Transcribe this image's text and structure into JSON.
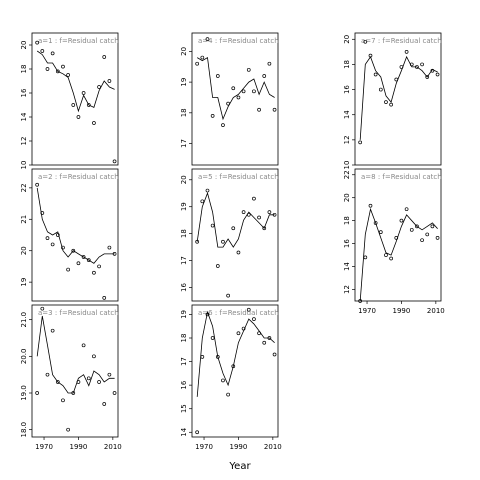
{
  "xlabel": "Year",
  "chart_data": [
    {
      "type": "scatter",
      "title": "a=1 : f=Residual catch",
      "x": [
        1966,
        1969,
        1972,
        1975,
        1978,
        1981,
        1984,
        1987,
        1990,
        1993,
        1996,
        1999,
        2002,
        2005,
        2008,
        2011
      ],
      "values": [
        20.2,
        19.5,
        18,
        19.3,
        17.8,
        18.2,
        17.5,
        15,
        14,
        16,
        15,
        13.5,
        16.5,
        19,
        17,
        10.3
      ],
      "fit": [
        19.5,
        19.2,
        18.5,
        18.5,
        17.8,
        17.6,
        17.3,
        16,
        14.5,
        15.8,
        15,
        14.8,
        16.2,
        17,
        16.5,
        16.3
      ],
      "xlim": [
        1963,
        2013
      ],
      "xticks": [
        1970,
        1990,
        2010
      ],
      "show_xticks": false,
      "ylim": [
        10,
        21
      ],
      "yticks": [
        10,
        12,
        14,
        16,
        18,
        20
      ]
    },
    {
      "type": "scatter",
      "title": "a=2 : f=Residual catch",
      "x": [
        1966,
        1969,
        1972,
        1975,
        1978,
        1981,
        1984,
        1987,
        1990,
        1993,
        1996,
        1999,
        2002,
        2005,
        2008,
        2011
      ],
      "values": [
        22.1,
        21.2,
        20.4,
        20.2,
        20.5,
        20.1,
        19.4,
        20,
        19.6,
        19.8,
        19.7,
        19.3,
        19.5,
        18.5,
        20.1,
        19.9
      ],
      "fit": [
        22,
        21,
        20.6,
        20.5,
        20.6,
        20,
        19.8,
        20,
        19.9,
        19.8,
        19.7,
        19.6,
        19.8,
        19.9,
        19.9,
        19.9
      ],
      "xlim": [
        1963,
        2013
      ],
      "xticks": [
        1970,
        1990,
        2010
      ],
      "show_xticks": false,
      "ylim": [
        18.4,
        22.6
      ],
      "yticks": [
        19,
        20,
        21,
        22
      ]
    },
    {
      "type": "scatter",
      "title": "a=3 : f=Residual catch",
      "x": [
        1966,
        1969,
        1972,
        1975,
        1978,
        1981,
        1984,
        1987,
        1990,
        1993,
        1996,
        1999,
        2002,
        2005,
        2008,
        2011
      ],
      "values": [
        19,
        21.3,
        19.5,
        20.7,
        19.3,
        18.8,
        18,
        19,
        19.3,
        20.3,
        19.4,
        20,
        19.3,
        18.7,
        19.5,
        19
      ],
      "fit": [
        20,
        21.1,
        20.3,
        19.5,
        19.3,
        19.2,
        19,
        19,
        19.4,
        19.5,
        19.2,
        19.6,
        19.5,
        19.3,
        19.4,
        19.4
      ],
      "xlim": [
        1963,
        2013
      ],
      "xticks": [
        1970,
        1990,
        2010
      ],
      "show_xticks": true,
      "ylim": [
        17.8,
        21.4
      ],
      "yticks": [
        {
          "value": 18,
          "label": "18.0"
        },
        {
          "value": 19,
          "label": "19.0"
        },
        {
          "value": 20,
          "label": "20.0"
        },
        {
          "value": 21,
          "label": "21.0"
        }
      ]
    },
    {
      "type": "scatter",
      "title": "a=4 : f=Residual catch",
      "x": [
        1966,
        1969,
        1972,
        1975,
        1978,
        1981,
        1984,
        1987,
        1990,
        1993,
        1996,
        1999,
        2002,
        2005,
        2008,
        2011
      ],
      "values": [
        19.6,
        19.8,
        20.4,
        17.9,
        19.2,
        17.6,
        18.3,
        18.8,
        18.5,
        18.7,
        19.4,
        18.7,
        18.1,
        19.2,
        19.6,
        18.1
      ],
      "fit": [
        19.8,
        19.7,
        19.8,
        18.5,
        18.5,
        17.8,
        18.2,
        18.5,
        18.6,
        18.8,
        19,
        19.1,
        18.6,
        19,
        18.6,
        18.5
      ],
      "xlim": [
        1963,
        2013
      ],
      "xticks": [
        1970,
        1990,
        2010
      ],
      "show_xticks": false,
      "ylim": [
        16.3,
        20.6
      ],
      "yticks": [
        17,
        18,
        19,
        20
      ]
    },
    {
      "type": "scatter",
      "title": "a=5 : f=Residual catch",
      "x": [
        1966,
        1969,
        1972,
        1975,
        1978,
        1981,
        1984,
        1987,
        1990,
        1993,
        1996,
        1999,
        2002,
        2005,
        2008,
        2011
      ],
      "values": [
        17.7,
        19.2,
        19.6,
        18.3,
        16.8,
        17.7,
        15.7,
        18.2,
        17.3,
        18.8,
        18.7,
        19.3,
        18.6,
        18.2,
        18.8,
        18.7
      ],
      "fit": [
        17.7,
        19,
        19.5,
        18.8,
        17.5,
        17.5,
        17.8,
        17.5,
        17.8,
        18.5,
        18.8,
        18.6,
        18.4,
        18.2,
        18.7,
        18.7
      ],
      "xlim": [
        1963,
        2013
      ],
      "xticks": [
        1970,
        1990,
        2010
      ],
      "show_xticks": false,
      "ylim": [
        15.5,
        20.4
      ],
      "yticks": [
        16,
        17,
        18,
        19,
        20
      ]
    },
    {
      "type": "scatter",
      "title": "a=6 : f=Residual catch",
      "x": [
        1966,
        1969,
        1972,
        1975,
        1978,
        1981,
        1984,
        1987,
        1990,
        1993,
        1996,
        1999,
        2002,
        2005,
        2008,
        2011
      ],
      "values": [
        14,
        17.2,
        19,
        18,
        17.2,
        16.2,
        15.6,
        16.8,
        18.2,
        18.4,
        19.2,
        18.8,
        18.2,
        17.8,
        18,
        17.3
      ],
      "fit": [
        15.5,
        18,
        19.1,
        18.5,
        17.2,
        16.5,
        16,
        16.8,
        17.8,
        18.3,
        18.8,
        18.6,
        18.3,
        18,
        18,
        17.8
      ],
      "xlim": [
        1963,
        2013
      ],
      "xticks": [
        1970,
        1990,
        2010
      ],
      "show_xticks": true,
      "ylim": [
        13.8,
        19.4
      ],
      "yticks": [
        14,
        15,
        16,
        17,
        18,
        19
      ]
    },
    {
      "type": "scatter",
      "title": "a=7 : f=Residual catch",
      "x": [
        1966,
        1969,
        1972,
        1975,
        1978,
        1981,
        1984,
        1987,
        1990,
        1993,
        1996,
        1999,
        2002,
        2005,
        2008,
        2011
      ],
      "values": [
        11.8,
        19.8,
        18.7,
        17.2,
        16,
        15,
        14.8,
        16.8,
        17.8,
        19,
        18,
        17.8,
        18,
        17,
        17.5,
        17.2
      ],
      "fit": [
        12,
        18,
        18.6,
        17.5,
        17,
        15.5,
        15,
        16.5,
        17.5,
        18.6,
        17.8,
        17.8,
        17.5,
        17,
        17.6,
        17.4
      ],
      "xlim": [
        1963,
        2013
      ],
      "xticks": [
        1970,
        1990,
        2010
      ],
      "show_xticks": false,
      "ylim": [
        10,
        20.5
      ],
      "yticks": [
        10,
        12,
        14,
        16,
        18,
        20
      ]
    },
    {
      "type": "scatter",
      "title": "a=8 : f=Residual catch",
      "x": [
        1966,
        1969,
        1972,
        1975,
        1978,
        1981,
        1984,
        1987,
        1990,
        1993,
        1996,
        1999,
        2002,
        2005,
        2008,
        2011
      ],
      "values": [
        11,
        14.8,
        19.3,
        17.8,
        17,
        15,
        14.7,
        16.5,
        18,
        19,
        17.2,
        17.5,
        16.3,
        16.8,
        17.5,
        16.5
      ],
      "fit": [
        11,
        16.8,
        19,
        17.8,
        16.5,
        15.2,
        15,
        16.2,
        17.5,
        18.5,
        18,
        17.5,
        17.2,
        17.5,
        17.8,
        17.3
      ],
      "xlim": [
        1963,
        2013
      ],
      "xticks": [
        1970,
        1990,
        2010
      ],
      "show_xticks": true,
      "ylim": [
        11,
        22.5
      ],
      "yticks": [
        12,
        14,
        16,
        18,
        20,
        22
      ]
    }
  ]
}
